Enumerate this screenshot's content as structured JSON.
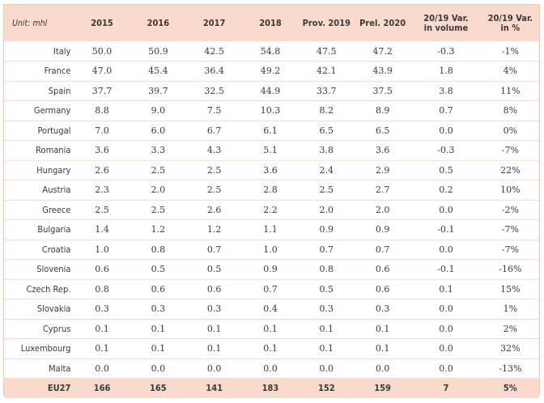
{
  "unit": "Unit: mhl",
  "headers": [
    "2015",
    "2016",
    "2017",
    "2018",
    "Prov. 2019",
    "Prel. 2020",
    "20/19 Var.\nin volume",
    "20/19 Var.\nin %"
  ],
  "rows": [
    {
      "country": "Italy",
      "values": [
        "50.0",
        "50.9",
        "42.5",
        "54.8",
        "47.5",
        "47.2",
        "-0.3",
        "-1%"
      ]
    },
    {
      "country": "France",
      "values": [
        "47.0",
        "45.4",
        "36.4",
        "49.2",
        "42.1",
        "43.9",
        "1.8",
        "4%"
      ]
    },
    {
      "country": "Spain",
      "values": [
        "37.7",
        "39.7",
        "32.5",
        "44.9",
        "33.7",
        "37.5",
        "3.8",
        "11%"
      ]
    },
    {
      "country": "Germany",
      "values": [
        "8.8",
        "9.0",
        "7.5",
        "10.3",
        "8.2",
        "8.9",
        "0.7",
        "8%"
      ]
    },
    {
      "country": "Portugal",
      "values": [
        "7.0",
        "6.0",
        "6.7",
        "6.1",
        "6.5",
        "6.5",
        "0.0",
        "0%"
      ]
    },
    {
      "country": "Romania",
      "values": [
        "3.6",
        "3.3",
        "4.3",
        "5.1",
        "3.8",
        "3.6",
        "-0.3",
        "-7%"
      ]
    },
    {
      "country": "Hungary",
      "values": [
        "2.6",
        "2.5",
        "2.5",
        "3.6",
        "2.4",
        "2.9",
        "0.5",
        "22%"
      ]
    },
    {
      "country": "Austria",
      "values": [
        "2.3",
        "2.0",
        "2.5",
        "2.8",
        "2.5",
        "2.7",
        "0.2",
        "10%"
      ]
    },
    {
      "country": "Greece",
      "values": [
        "2.5",
        "2.5",
        "2.6",
        "2.2",
        "2.0",
        "2.0",
        "0.0",
        "-2%"
      ]
    },
    {
      "country": "Bulgaria",
      "values": [
        "1.4",
        "1.2",
        "1.2",
        "1.1",
        "0.9",
        "0.9",
        "-0.1",
        "-7%"
      ]
    },
    {
      "country": "Croatia",
      "values": [
        "1.0",
        "0.8",
        "0.7",
        "1.0",
        "0.7",
        "0.7",
        "0.0",
        "-7%"
      ]
    },
    {
      "country": "Slovenia",
      "values": [
        "0.6",
        "0.5",
        "0.5",
        "0.9",
        "0.8",
        "0.6",
        "-0.1",
        "-16%"
      ]
    },
    {
      "country": "Czech Rep.",
      "values": [
        "0.8",
        "0.6",
        "0.6",
        "0.7",
        "0.5",
        "0.6",
        "0.1",
        "15%"
      ]
    },
    {
      "country": "Slovakia",
      "values": [
        "0.3",
        "0.3",
        "0.3",
        "0.4",
        "0.3",
        "0.3",
        "0.0",
        "1%"
      ]
    },
    {
      "country": "Cyprus",
      "values": [
        "0.1",
        "0.1",
        "0.1",
        "0.1",
        "0.1",
        "0.1",
        "0.0",
        "2%"
      ]
    },
    {
      "country": "Luxembourg",
      "values": [
        "0.1",
        "0.1",
        "0.1",
        "0.1",
        "0.1",
        "0.1",
        "0.0",
        "32%"
      ]
    },
    {
      "country": "Malta",
      "values": [
        "0.0",
        "0.0",
        "0.0",
        "0.0",
        "0.0",
        "0.0",
        "0.0",
        "-13%"
      ]
    }
  ],
  "total": {
    "country": "EU27",
    "values": [
      "166",
      "165",
      "141",
      "183",
      "152",
      "159",
      "7",
      "5%"
    ]
  },
  "colors": {
    "header_bg": "#f9dacd",
    "row_border": "#f2dcd3",
    "frame": "#e8c9bd"
  }
}
